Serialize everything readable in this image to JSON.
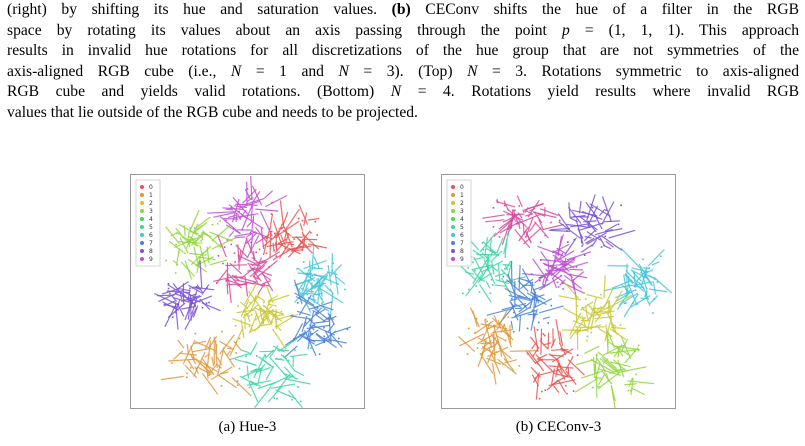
{
  "paragraph": {
    "l1_a": "(right) by shifting its hue and saturation values. ",
    "l1_b": "(b)",
    "l1_c": " CEConv shifts the hue of a filter in the RGB",
    "l2_a": "space by rotating its values about an axis passing through the point ",
    "l2_p": "p",
    "l2_c": " = (1, 1, 1). This approach",
    "l3": "results in invalid hue rotations for all discretizations of the hue group that are not symmetries of the",
    "l4_a": "axis-aligned RGB cube (i.e., ",
    "l4_n1": "N",
    "l4_b": " = 1 and ",
    "l4_n2": "N",
    "l4_c": " = 3). (Top) ",
    "l4_n3": "N",
    "l4_d": " = 3. Rotations symmetric to axis-aligned",
    "l5_a": "RGB cube and yields valid rotations. (Bottom) ",
    "l5_n": "N",
    "l5_b": " = 4. Rotations yield results where invalid RGB",
    "l6": "values that lie outside of the RGB cube and needs to be projected."
  },
  "legend_labels": [
    "0",
    "1",
    "2",
    "3",
    "4",
    "5",
    "6",
    "7",
    "8",
    "9"
  ],
  "colors": [
    "#e8534f",
    "#e2973b",
    "#c9c832",
    "#8fd63a",
    "#3fd65a",
    "#3bd6a0",
    "#45c6d8",
    "#4a82d6",
    "#7a52d6",
    "#c04ed6",
    "#d84a9e"
  ],
  "captions": {
    "a": "(a) Hue-3",
    "b": "(b) CEConv-3"
  }
}
